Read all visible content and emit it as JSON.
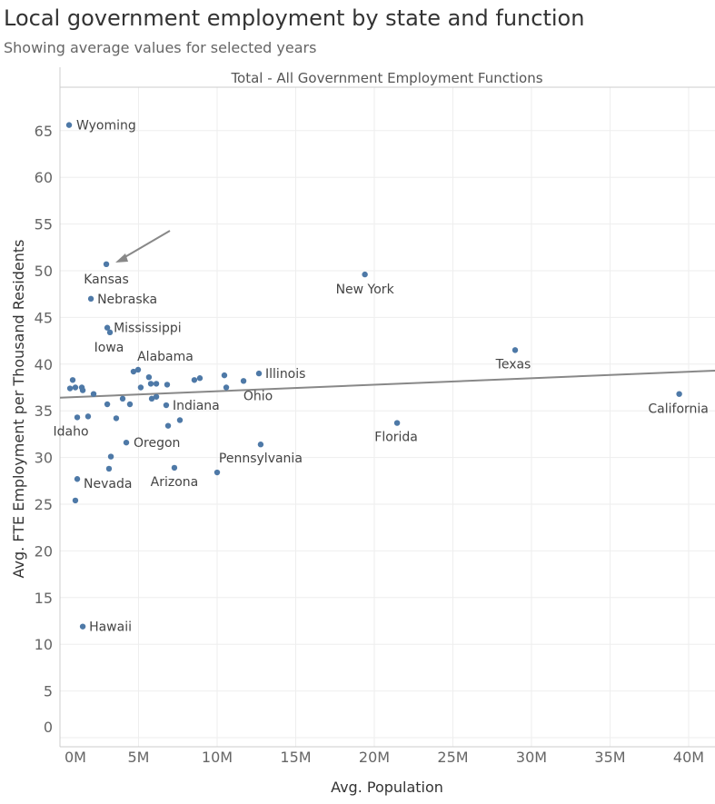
{
  "header": {
    "title": "Local government employment by state and function",
    "subtitle": "Showing average values for selected years"
  },
  "chart_data": {
    "type": "scatter",
    "panel_title": "Total - All Government Employment Functions",
    "xlabel": "Avg. Population",
    "ylabel": "Avg. FTE Employment per Thousand Residents",
    "xlim": [
      0,
      41.7
    ],
    "ylim": [
      0,
      70
    ],
    "x_ticks": [
      0,
      5,
      10,
      15,
      20,
      25,
      30,
      35,
      40
    ],
    "x_tick_labels": [
      "0M",
      "5M",
      "10M",
      "15M",
      "20M",
      "25M",
      "30M",
      "35M",
      "40M"
    ],
    "y_ticks": [
      0,
      5,
      10,
      15,
      20,
      25,
      30,
      35,
      40,
      45,
      50,
      55,
      60,
      65
    ],
    "y_tick_labels": [
      "0",
      "5",
      "10",
      "15",
      "20",
      "25",
      "30",
      "35",
      "40",
      "45",
      "50",
      "55",
      "60",
      "65"
    ],
    "grid": true,
    "point_color": "#4e79a7",
    "trend_color": "#888888",
    "trend_line": {
      "x": [
        0,
        41.7
      ],
      "y": [
        36.4,
        39.3
      ]
    },
    "points": [
      {
        "label": "Wyoming",
        "x": 0.58,
        "y": 65.6
      },
      {
        "label": "Kansas",
        "x": 2.95,
        "y": 50.7
      },
      {
        "label": "Nebraska",
        "x": 1.97,
        "y": 47.0
      },
      {
        "label": "Mississippi",
        "x": 3.01,
        "y": 43.9
      },
      {
        "label": "Iowa",
        "x": 3.18,
        "y": 43.4
      },
      {
        "label": "Alabama",
        "x": 4.97,
        "y": 39.4
      },
      {
        "label": "Illinois",
        "x": 12.66,
        "y": 39.0
      },
      {
        "label": "Ohio",
        "x": 11.68,
        "y": 38.2
      },
      {
        "label": "Indiana",
        "x": 6.76,
        "y": 35.6
      },
      {
        "label": "Idaho",
        "x": 1.1,
        "y": 34.3
      },
      {
        "label": "Oregon",
        "x": 4.22,
        "y": 31.6
      },
      {
        "label": "Pennsylvania",
        "x": 12.77,
        "y": 31.4
      },
      {
        "label": "Arizona",
        "x": 7.28,
        "y": 28.9
      },
      {
        "label": "Nevada",
        "x": 1.1,
        "y": 27.7
      },
      {
        "label": "Hawaii",
        "x": 1.45,
        "y": 11.9
      },
      {
        "label": "New York",
        "x": 19.4,
        "y": 49.6
      },
      {
        "label": "Texas",
        "x": 28.96,
        "y": 41.5
      },
      {
        "label": "California",
        "x": 39.4,
        "y": 36.8
      },
      {
        "label": "Florida",
        "x": 21.45,
        "y": 33.7
      },
      {
        "x": 0.81,
        "y": 38.3
      },
      {
        "x": 0.64,
        "y": 37.4
      },
      {
        "x": 0.98,
        "y": 37.5
      },
      {
        "x": 1.39,
        "y": 37.5
      },
      {
        "x": 1.45,
        "y": 37.2
      },
      {
        "x": 2.14,
        "y": 36.8
      },
      {
        "x": 4.68,
        "y": 39.2
      },
      {
        "x": 5.66,
        "y": 38.6
      },
      {
        "x": 5.14,
        "y": 37.5
      },
      {
        "x": 5.78,
        "y": 37.9
      },
      {
        "x": 6.13,
        "y": 37.9
      },
      {
        "x": 6.82,
        "y": 37.8
      },
      {
        "x": 8.55,
        "y": 38.3
      },
      {
        "x": 8.9,
        "y": 38.5
      },
      {
        "x": 10.46,
        "y": 38.8
      },
      {
        "x": 10.58,
        "y": 37.5
      },
      {
        "x": 3.01,
        "y": 35.7
      },
      {
        "x": 3.99,
        "y": 36.3
      },
      {
        "x": 4.45,
        "y": 35.7
      },
      {
        "x": 5.84,
        "y": 36.3
      },
      {
        "x": 6.13,
        "y": 36.5
      },
      {
        "x": 1.79,
        "y": 34.4
      },
      {
        "x": 3.58,
        "y": 34.2
      },
      {
        "x": 6.88,
        "y": 33.4
      },
      {
        "x": 7.63,
        "y": 34.0
      },
      {
        "x": 3.24,
        "y": 30.1
      },
      {
        "x": 3.12,
        "y": 28.8
      },
      {
        "x": 10.0,
        "y": 28.4
      },
      {
        "x": 0.98,
        "y": 25.4
      }
    ],
    "annotation": {
      "type": "arrow",
      "points_to": "Kansas"
    }
  }
}
